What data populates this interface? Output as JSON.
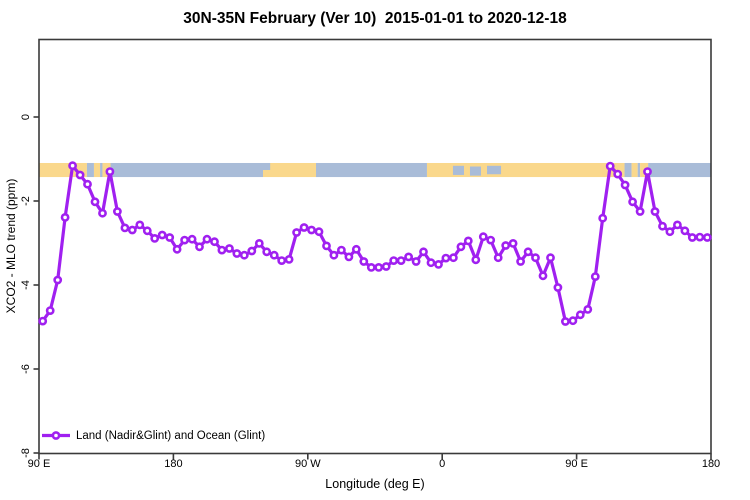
{
  "title": "30N-35N February (Ver 10)  2015-01-01 to 2020-12-18",
  "colors": {
    "series_purple": "#A020F0",
    "marker_fill": "#FFFFFF",
    "ocean": "#A9BCD8",
    "land": "#FAD88C",
    "axis": "#3A3A3A",
    "text": "#000000"
  },
  "chart_data": {
    "type": "line",
    "title": "30N-35N February (Ver 10)  2015-01-01 to 2020-12-18",
    "xlabel": "Longitude (deg E)",
    "ylabel": "XCO2 - MLO trend (ppm)",
    "legend_position": "bottom-left-inside",
    "grid": false,
    "x_axis_note": "longitude increases eastward from 90E, wrapping around the globe (90E..180..90W..0..90E..180), 450 degrees total",
    "x_range_cumulative_deg": [
      90,
      540
    ],
    "ylim": [
      -8.05,
      1.85
    ],
    "x_ticks": [
      {
        "pos": 90,
        "label": "90 E"
      },
      {
        "pos": 180,
        "label": "180"
      },
      {
        "pos": 270,
        "label": "90 W"
      },
      {
        "pos": 360,
        "label": "0"
      },
      {
        "pos": 450,
        "label": "90 E"
      },
      {
        "pos": 540,
        "label": "180"
      }
    ],
    "y_ticks": [
      {
        "pos": 0,
        "label": "0"
      },
      {
        "pos": -2,
        "label": "-2"
      },
      {
        "pos": -4,
        "label": "-4"
      },
      {
        "pos": -6,
        "label": "-6"
      },
      {
        "pos": -8,
        "label": "-8"
      }
    ],
    "series": [
      {
        "name": "Land (Nadir&Glint) and Ocean (Glint)",
        "color": "#A020F0",
        "marker": "open-circle",
        "x": [
          92.5,
          97.5,
          102.5,
          107.5,
          112.5,
          117.5,
          122.5,
          127.5,
          132.5,
          137.5,
          142.5,
          147.5,
          152.5,
          157.5,
          162.5,
          167.5,
          172.5,
          177.5,
          182.5,
          187.5,
          192.5,
          197.5,
          202.5,
          207.5,
          212.5,
          217.5,
          222.5,
          227.5,
          232.5,
          237.5,
          242.5,
          247.5,
          252.5,
          257.5,
          262.5,
          267.5,
          272.5,
          277.5,
          282.5,
          287.5,
          292.5,
          297.5,
          302.5,
          307.5,
          312.5,
          317.5,
          322.5,
          327.5,
          332.5,
          337.5,
          342.5,
          347.5,
          352.5,
          357.5,
          362.5,
          367.5,
          372.5,
          377.5,
          382.5,
          387.5,
          392.5,
          397.5,
          402.5,
          407.5,
          412.5,
          417.5,
          422.5,
          427.5,
          432.5,
          437.5,
          442.5,
          447.5,
          452.5,
          457.5,
          462.5,
          467.5,
          472.5,
          477.5,
          482.5,
          487.5,
          492.5,
          497.5,
          502.5,
          507.5,
          512.5,
          517.5,
          522.5,
          527.5,
          532.5,
          537.5
        ],
        "y": [
          -4.86,
          -4.61,
          -3.88,
          -2.39,
          -1.16,
          -1.38,
          -1.6,
          -2.02,
          -2.29,
          -1.3,
          -2.25,
          -2.64,
          -2.69,
          -2.57,
          -2.71,
          -2.89,
          -2.81,
          -2.87,
          -3.15,
          -2.93,
          -2.91,
          -3.09,
          -2.91,
          -2.97,
          -3.17,
          -3.13,
          -3.25,
          -3.29,
          -3.19,
          -3.01,
          -3.21,
          -3.29,
          -3.42,
          -3.39,
          -2.75,
          -2.63,
          -2.69,
          -2.73,
          -3.07,
          -3.29,
          -3.17,
          -3.33,
          -3.15,
          -3.44,
          -3.58,
          -3.58,
          -3.56,
          -3.42,
          -3.42,
          -3.33,
          -3.44,
          -3.21,
          -3.47,
          -3.51,
          -3.36,
          -3.35,
          -3.09,
          -2.95,
          -3.4,
          -2.85,
          -2.93,
          -3.35,
          -3.06,
          -3.01,
          -3.44,
          -3.21,
          -3.35,
          -3.78,
          -3.35,
          -4.06,
          -4.87,
          -4.85,
          -4.71,
          -4.58,
          -3.8,
          -2.41,
          -1.17,
          -1.36,
          -1.62,
          -2.02,
          -2.25,
          -1.3,
          -2.25,
          -2.6,
          -2.73,
          -2.57,
          -2.71,
          -2.87,
          -2.86,
          -2.87
        ]
      }
    ],
    "legend": "Land (Nadir&Glint) and Ocean (Glint)",
    "map_strip": {
      "description": "world-map land/ocean strip for the 30N-35N band drawn across the plot",
      "value_top": -1.095,
      "value_bottom": -1.43,
      "ocean_color": "#A9BCD8",
      "land_color": "#FAD88C",
      "segments": [
        {
          "from": 90,
          "to": 122.1,
          "surface": "land"
        },
        {
          "from": 122.1,
          "to": 126.8,
          "surface": "ocean"
        },
        {
          "from": 126.8,
          "to": 130.9,
          "surface": "land"
        },
        {
          "from": 130.9,
          "to": 132.5,
          "surface": "ocean"
        },
        {
          "from": 132.5,
          "to": 137.9,
          "surface": "land"
        },
        {
          "from": 137.9,
          "to": 240.0,
          "surface": "ocean"
        },
        {
          "from": 240.0,
          "to": 275.5,
          "surface": "land"
        },
        {
          "from": 275.5,
          "to": 349.8,
          "surface": "ocean"
        },
        {
          "from": 349.8,
          "to": 482.1,
          "surface": "land"
        },
        {
          "from": 482.1,
          "to": 486.8,
          "surface": "ocean"
        },
        {
          "from": 486.8,
          "to": 490.9,
          "surface": "land"
        },
        {
          "from": 490.9,
          "to": 492.5,
          "surface": "ocean"
        },
        {
          "from": 492.5,
          "to": 497.9,
          "surface": "land"
        },
        {
          "from": 497.9,
          "to": 540,
          "surface": "ocean"
        }
      ],
      "inner_patches": [
        {
          "from": 367.2,
          "to": 374.6,
          "surface": "ocean",
          "top": 0.2,
          "bottom": 0.85
        },
        {
          "from": 378.6,
          "to": 386.0,
          "surface": "ocean",
          "top": 0.25,
          "bottom": 0.9
        },
        {
          "from": 390.0,
          "to": 399.4,
          "surface": "ocean",
          "top": 0.2,
          "bottom": 0.8
        },
        {
          "from": 240.0,
          "to": 244.8,
          "surface": "ocean",
          "top": 0.0,
          "bottom": 0.5
        }
      ]
    }
  }
}
